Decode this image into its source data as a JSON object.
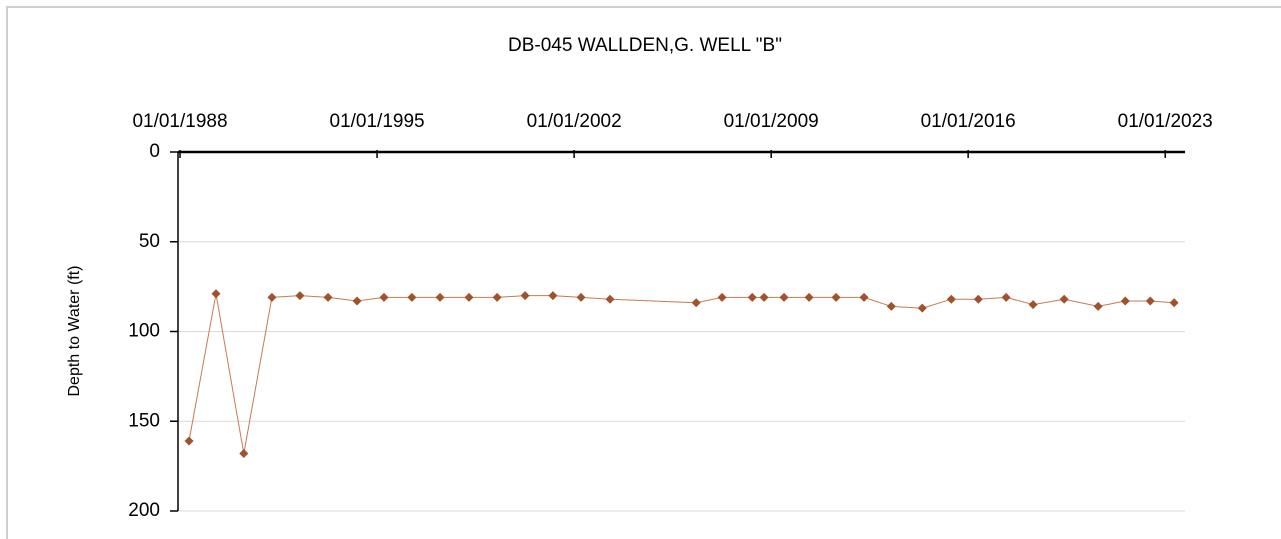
{
  "chart_data": {
    "type": "line",
    "title": "DB-045  WALLDEN,G. WELL \"B\"",
    "ylabel": "Depth to Water (ft)",
    "x": [
      "1988-04-27",
      "1989-04-12",
      "1990-04-08",
      "1991-04-08",
      "1992-04-05",
      "1993-04-05",
      "1994-04-16",
      "1995-04-01",
      "1996-03-28",
      "1997-03-28",
      "1998-04-08",
      "1999-04-08",
      "2000-04-05",
      "2001-04-01",
      "2002-04-01",
      "2003-04-12",
      "2006-05-04",
      "2007-04-05",
      "2008-05-01",
      "2008-10-01",
      "2009-06-17",
      "2010-05-08",
      "2011-04-23",
      "2012-04-20",
      "2013-04-09",
      "2014-05-16",
      "2015-05-28",
      "2016-05-12",
      "2017-05-08",
      "2018-04-23",
      "2019-05-31",
      "2020-08-14",
      "2021-08-01",
      "2022-06-21",
      "2023-04-27"
    ],
    "series": [
      {
        "name": "Depth to Water",
        "color": "#a0522d",
        "line_color": "#c47a55",
        "values": [
          161,
          79,
          168,
          81,
          80,
          81,
          83,
          81,
          81,
          81,
          81,
          81,
          80,
          80,
          81,
          82,
          84,
          81,
          81,
          81,
          81,
          81,
          81,
          81,
          86,
          87,
          82,
          82,
          81,
          85,
          82,
          86,
          83,
          83,
          84
        ]
      }
    ],
    "xlim": [
      "1987-12-06",
      "2023-09-15"
    ],
    "xticks": [
      {
        "value": "1988-01-01",
        "label": "01/01/1988"
      },
      {
        "value": "1995-01-01",
        "label": "01/01/1995"
      },
      {
        "value": "2002-01-01",
        "label": "01/01/2002"
      },
      {
        "value": "2009-01-01",
        "label": "01/01/2009"
      },
      {
        "value": "2016-01-01",
        "label": "01/01/2016"
      },
      {
        "value": "2023-01-01",
        "label": "01/01/2023"
      }
    ],
    "ylim": [
      0,
      200
    ],
    "yticks": [
      0,
      50,
      100,
      150,
      200
    ],
    "y_inverted": true,
    "x_axis_position": "top",
    "grid": true
  }
}
